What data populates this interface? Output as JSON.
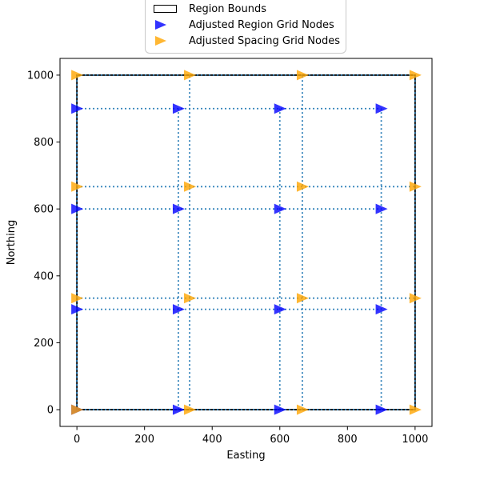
{
  "chart_data": {
    "type": "scatter",
    "title": "",
    "xlabel": "Easting",
    "ylabel": "Northing",
    "xlim": [
      -50,
      1050
    ],
    "ylim": [
      -50,
      1050
    ],
    "xticks": [
      0,
      200,
      400,
      600,
      800,
      1000
    ],
    "yticks": [
      0,
      200,
      400,
      600,
      800,
      1000
    ],
    "grid": false,
    "background": "#ffffff",
    "region_bounds": {
      "x_min": 0,
      "y_min": 0,
      "x_max": 1000,
      "y_max": 1000,
      "color": "#000000",
      "linewidth": 1.8
    },
    "connector_lines": {
      "style": "dotted",
      "color": "#1f77b4",
      "linewidth": 1.8
    },
    "series": [
      {
        "name": "Adjusted Region Grid Nodes",
        "marker": "right-triangle",
        "color": "#0000ff",
        "alpha": 0.8,
        "x_coords": [
          0,
          300,
          600,
          900
        ],
        "y_coords": [
          0,
          300,
          600,
          900
        ]
      },
      {
        "name": "Adjusted Spacing Grid Nodes",
        "marker": "right-triangle",
        "color": "#ffa500",
        "alpha": 0.8,
        "x_coords": [
          0,
          333.33,
          666.67,
          1000
        ],
        "y_coords": [
          0,
          333.33,
          666.67,
          1000
        ]
      }
    ],
    "legend": {
      "position": "top-center-above-axes",
      "entries": [
        {
          "label": "Region Bounds",
          "swatch": "rect-outline",
          "color": "#000000"
        },
        {
          "label": "Adjusted Region Grid Nodes",
          "swatch": "right-triangle",
          "color": "#0000ff"
        },
        {
          "label": "Adjusted Spacing Grid Nodes",
          "swatch": "right-triangle",
          "color": "#ffa500"
        }
      ]
    }
  }
}
